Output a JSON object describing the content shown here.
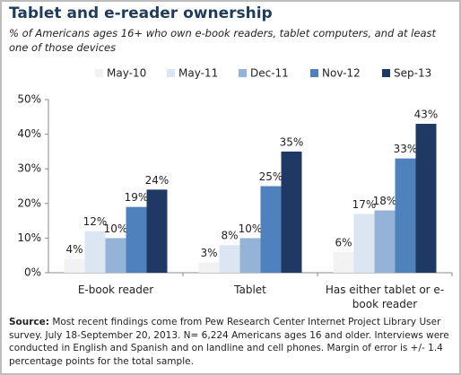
{
  "chart_data": {
    "type": "bar",
    "title": "Tablet and e-reader ownership",
    "subtitle": "% of Americans ages 16+ who own e-book readers, tablet computers, and at least one of those devices",
    "categories": [
      "E-book reader",
      "Tablet",
      "Has either tablet or e-book reader"
    ],
    "series": [
      {
        "name": "May-10",
        "color": "#f2f2f2",
        "values": [
          4,
          3,
          6
        ],
        "value_labels": [
          "4%",
          "3%",
          "6%"
        ]
      },
      {
        "name": "May-11",
        "color": "#dce6f2",
        "values": [
          12,
          8,
          17
        ],
        "value_labels": [
          "12%",
          "8%",
          "17%"
        ]
      },
      {
        "name": "Dec-11",
        "color": "#95b3d7",
        "values": [
          10,
          10,
          18
        ],
        "value_labels": [
          "10%",
          "10%",
          "18%"
        ]
      },
      {
        "name": "Nov-12",
        "color": "#4f81bd",
        "values": [
          19,
          25,
          33
        ],
        "value_labels": [
          "19%",
          "25%",
          "33%"
        ]
      },
      {
        "name": "Sep-13",
        "color": "#1f3864",
        "values": [
          24,
          35,
          43
        ],
        "value_labels": [
          "24%",
          "35%",
          "43%"
        ]
      }
    ],
    "ylim": [
      0,
      50
    ],
    "yticks": [
      {
        "value": 0,
        "label": "0%"
      },
      {
        "value": 10,
        "label": "10%"
      },
      {
        "value": 20,
        "label": "20%"
      },
      {
        "value": 30,
        "label": "30%"
      },
      {
        "value": 40,
        "label": "40%"
      },
      {
        "value": 50,
        "label": "50%"
      }
    ],
    "legend": "top",
    "source_label": "Source:",
    "source": "Most recent findings come from Pew Research Center Internet Project Library User survey. July 18-September 20, 2013. N= 6,224 Americans ages 16 and older. Interviews were conducted in English and Spanish and on landline and cell phones. Margin of error is +/- 1.4 percentage points for the total sample."
  }
}
